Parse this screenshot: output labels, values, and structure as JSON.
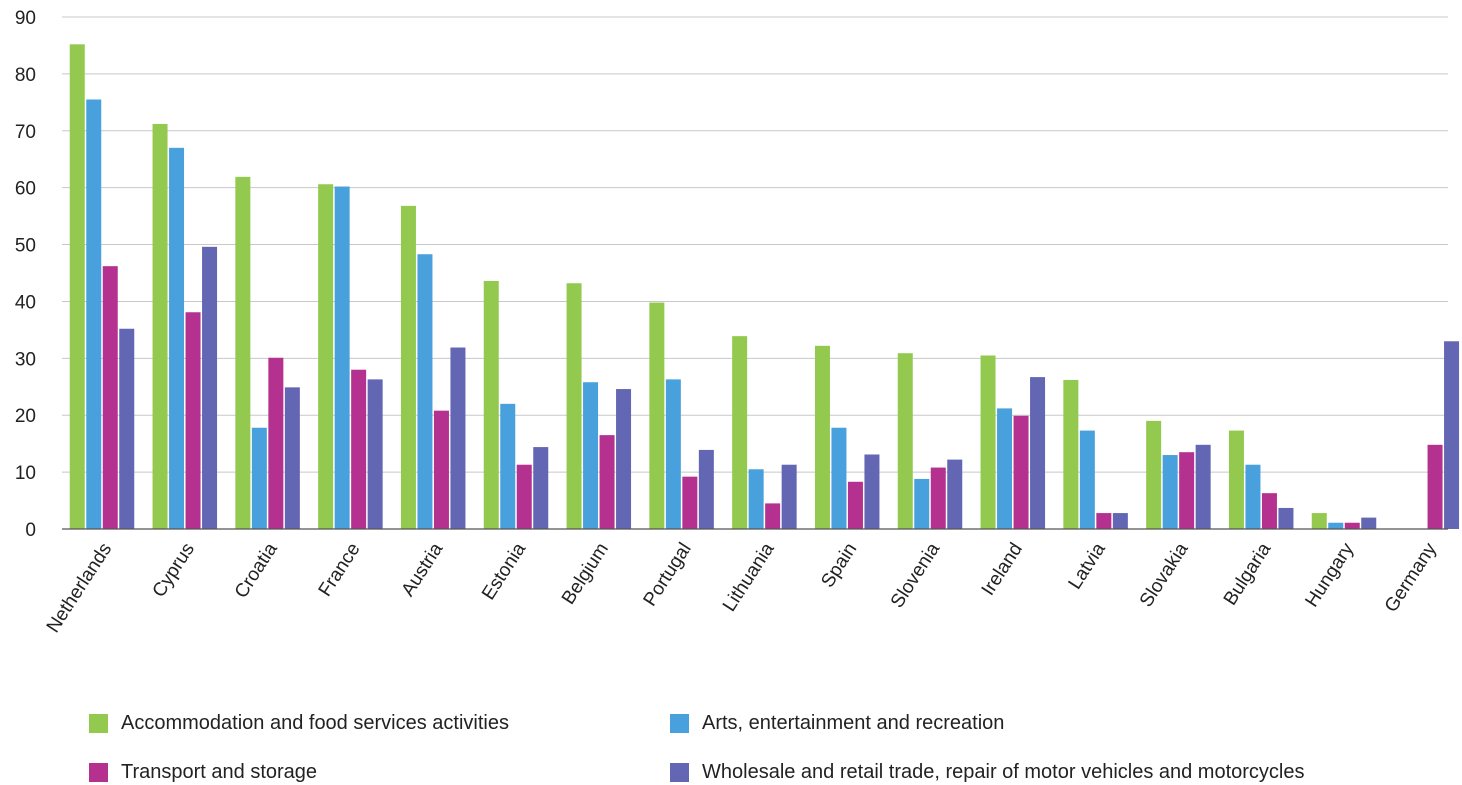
{
  "chart_data": {
    "type": "bar",
    "title": "",
    "xlabel": "",
    "ylabel": "",
    "ylim": [
      0,
      90
    ],
    "yticks": [
      0,
      10,
      20,
      30,
      40,
      50,
      60,
      70,
      80,
      90
    ],
    "grid": true,
    "legend_position": "bottom",
    "categories": [
      "Netherlands",
      "Cyprus",
      "Croatia",
      "France",
      "Austria",
      "Estonia",
      "Belgium",
      "Portugal",
      "Lithuania",
      "Spain",
      "Slovenia",
      "Ireland",
      "Latvia",
      "Slovakia",
      "Bulgaria",
      "Hungary",
      "Germany"
    ],
    "series": [
      {
        "name": "Accommodation and food services activities",
        "color": "#92c94e",
        "values": [
          85.2,
          71.2,
          61.9,
          60.6,
          56.8,
          43.6,
          43.2,
          39.8,
          33.9,
          32.2,
          30.9,
          30.5,
          26.2,
          19.0,
          17.3,
          2.8,
          null
        ]
      },
      {
        "name": "Arts, entertainment and recreation",
        "color": "#48a1dd",
        "values": [
          75.5,
          67.0,
          17.8,
          60.2,
          48.3,
          22.0,
          25.8,
          26.3,
          10.5,
          17.8,
          8.8,
          21.2,
          17.3,
          13.0,
          11.3,
          1.1,
          null
        ]
      },
      {
        "name": "Transport and storage",
        "color": "#b5318f",
        "values": [
          46.2,
          38.1,
          30.1,
          28.0,
          20.8,
          11.3,
          16.5,
          9.2,
          4.5,
          8.3,
          10.8,
          19.9,
          2.8,
          13.5,
          6.3,
          1.1,
          14.8
        ]
      },
      {
        "name": "Wholesale and retail trade, repair of motor vehicles and motorcycles",
        "color": "#6266b3",
        "values": [
          35.2,
          49.6,
          24.9,
          26.3,
          31.9,
          14.4,
          24.6,
          13.9,
          11.3,
          13.1,
          12.2,
          26.7,
          2.8,
          14.8,
          3.7,
          2.0,
          33.0
        ]
      }
    ]
  }
}
